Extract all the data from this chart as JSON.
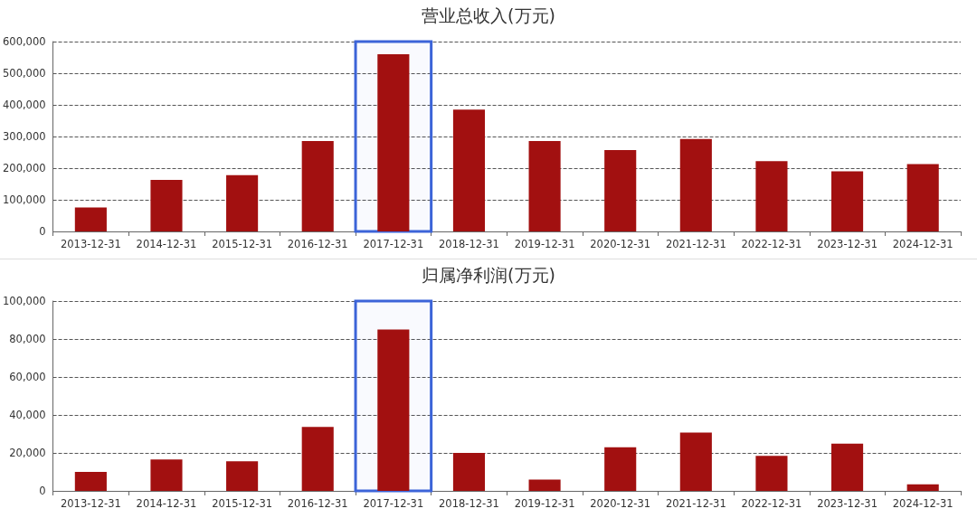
{
  "chart_data": [
    {
      "type": "bar",
      "title": "营业总收入(万元)",
      "categories": [
        "2013-12-31",
        "2014-12-31",
        "2015-12-31",
        "2016-12-31",
        "2017-12-31",
        "2018-12-31",
        "2019-12-31",
        "2020-12-31",
        "2021-12-31",
        "2022-12-31",
        "2023-12-31",
        "2024-12-31"
      ],
      "series": [
        {
          "color": "#a21010",
          "values": [
            76000,
            163000,
            178000,
            286000,
            560000,
            385000,
            286000,
            257000,
            292000,
            222000,
            190000,
            213000
          ]
        }
      ],
      "ylim": [
        0,
        600000
      ],
      "yticks": [
        0,
        {
          "value": 100000,
          "label": "100,000"
        },
        {
          "value": 200000,
          "label": "200,000"
        },
        {
          "value": 300000,
          "label": "300,000"
        },
        {
          "value": 400000,
          "label": "400,000"
        },
        {
          "value": 500000,
          "label": "500,000"
        },
        {
          "value": 600000,
          "label": "600,000"
        }
      ],
      "grid": "y",
      "bands": [
        {
          "axis": "x",
          "from": "2017-12-31",
          "to": "2017-12-31",
          "color": "#3c64d8"
        }
      ]
    },
    {
      "type": "bar",
      "title": "归属净利润(万元)",
      "categories": [
        "2013-12-31",
        "2014-12-31",
        "2015-12-31",
        "2016-12-31",
        "2017-12-31",
        "2018-12-31",
        "2019-12-31",
        "2020-12-31",
        "2021-12-31",
        "2022-12-31",
        "2023-12-31",
        "2024-12-31"
      ],
      "series": [
        {
          "color": "#a21010",
          "values": [
            10000,
            16600,
            15600,
            33700,
            85000,
            20000,
            5900,
            23000,
            30700,
            18500,
            24900,
            3400
          ]
        }
      ],
      "ylim": [
        0,
        100000
      ],
      "yticks": [
        0,
        {
          "value": 20000,
          "label": "20,000"
        },
        {
          "value": 40000,
          "label": "40,000"
        },
        {
          "value": 60000,
          "label": "60,000"
        },
        {
          "value": 80000,
          "label": "80,000"
        },
        {
          "value": 100000,
          "label": "100,000"
        }
      ],
      "grid": "y",
      "bands": [
        {
          "axis": "x",
          "from": "2017-12-31",
          "to": "2017-12-31",
          "color": "#3c64d8"
        }
      ]
    }
  ]
}
